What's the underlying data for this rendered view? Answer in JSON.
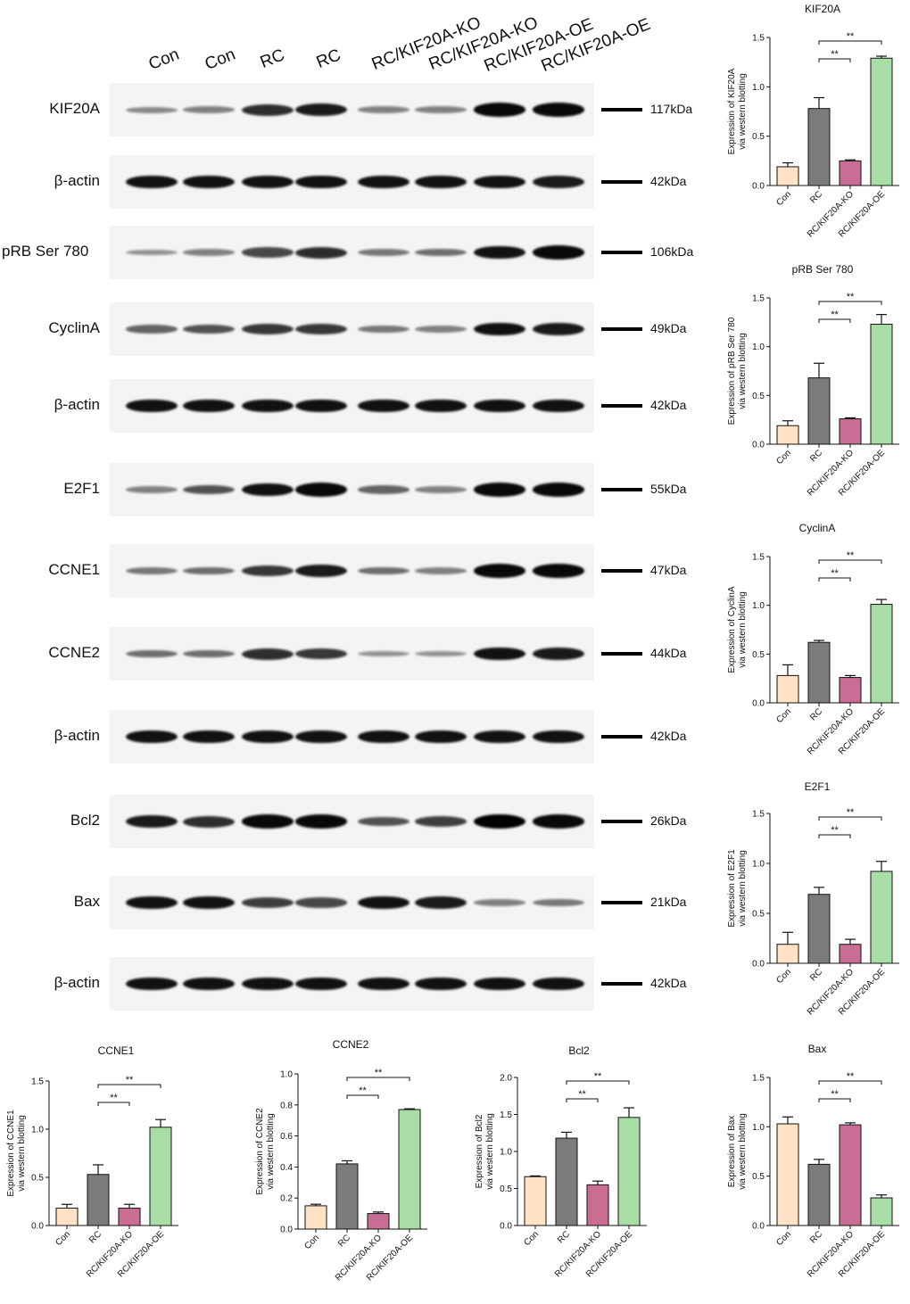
{
  "lanes": [
    "Con",
    "Con",
    "RC",
    "RC",
    "RC/KIF20A-KO",
    "RC/KIF20A-KO",
    "RC/KIF20A-OE",
    "RC/KIF20A-OE"
  ],
  "blots": [
    {
      "label": "KIF20A",
      "kda": "117kDa",
      "intensity": [
        0.25,
        0.3,
        0.75,
        0.85,
        0.3,
        0.3,
        0.95,
        0.95
      ]
    },
    {
      "label": "β-actin",
      "kda": "42kDa",
      "intensity": [
        0.9,
        0.9,
        0.9,
        0.9,
        0.9,
        0.9,
        0.9,
        0.85
      ]
    },
    {
      "label": "pRB Ser 780",
      "kda": "106kDa",
      "intensity": [
        0.2,
        0.3,
        0.6,
        0.75,
        0.35,
        0.4,
        0.9,
        0.95
      ]
    },
    {
      "label": "CyclinA",
      "kda": "49kDa",
      "intensity": [
        0.45,
        0.55,
        0.7,
        0.7,
        0.35,
        0.3,
        0.9,
        0.85
      ]
    },
    {
      "label": "β-actin",
      "kda": "42kDa",
      "intensity": [
        0.9,
        0.9,
        0.9,
        0.9,
        0.9,
        0.9,
        0.9,
        0.9
      ]
    },
    {
      "label": "E2F1",
      "kda": "55kDa",
      "intensity": [
        0.3,
        0.55,
        0.9,
        0.95,
        0.45,
        0.3,
        0.95,
        0.95
      ]
    },
    {
      "label": "CCNE1",
      "kda": "47kDa",
      "intensity": [
        0.35,
        0.4,
        0.7,
        0.85,
        0.4,
        0.3,
        0.95,
        0.95
      ]
    },
    {
      "label": "CCNE2",
      "kda": "44kDa",
      "intensity": [
        0.4,
        0.4,
        0.75,
        0.7,
        0.2,
        0.2,
        0.9,
        0.85
      ]
    },
    {
      "label": "β-actin",
      "kda": "42kDa",
      "intensity": [
        0.9,
        0.9,
        0.9,
        0.9,
        0.9,
        0.9,
        0.9,
        0.9
      ]
    },
    {
      "label": "Bcl2",
      "kda": "26kDa",
      "intensity": [
        0.85,
        0.75,
        0.95,
        0.95,
        0.55,
        0.65,
        1.0,
        0.95
      ]
    },
    {
      "label": "Bax",
      "kda": "21kDa",
      "intensity": [
        0.9,
        0.9,
        0.65,
        0.6,
        0.9,
        0.85,
        0.3,
        0.35
      ]
    },
    {
      "label": "β-actin",
      "kda": "42kDa",
      "intensity": [
        0.9,
        0.9,
        0.9,
        0.9,
        0.9,
        0.9,
        0.9,
        0.9
      ]
    }
  ],
  "bar_colors": [
    "#ffe3c4",
    "#7b7b7b",
    "#c96d94",
    "#a8dea5"
  ],
  "sig_label": "**",
  "chart_data": [
    {
      "type": "bar",
      "title": "KIF20A",
      "ylabel": "Expression of KIF20A",
      "ylabel2": "via western blotting",
      "categories": [
        "Con",
        "RC",
        "RC/KIF20A-KO",
        "RC/KIF20A-OE"
      ],
      "values": [
        0.19,
        0.78,
        0.25,
        1.29
      ],
      "errors": [
        0.04,
        0.11,
        0.01,
        0.02
      ],
      "ylim": [
        0,
        1.5
      ],
      "yticks": [
        "0.0",
        "0.5",
        "1.0",
        "1.5"
      ],
      "significance": [
        {
          "from": 1,
          "to": 2,
          "label": "**"
        },
        {
          "from": 1,
          "to": 3,
          "label": "**"
        }
      ]
    },
    {
      "type": "bar",
      "title": "pRB Ser 780",
      "ylabel": "Expression of pRB Ser 780",
      "ylabel2": "via western blotting",
      "categories": [
        "Con",
        "RC",
        "RC/KIF20A-KO",
        "RC/KIF20A-OE"
      ],
      "values": [
        0.19,
        0.68,
        0.26,
        1.23
      ],
      "errors": [
        0.05,
        0.15,
        0.01,
        0.1
      ],
      "ylim": [
        0,
        1.5
      ],
      "yticks": [
        "0.0",
        "0.5",
        "1.0",
        "1.5"
      ],
      "significance": [
        {
          "from": 1,
          "to": 2,
          "label": "**"
        },
        {
          "from": 1,
          "to": 3,
          "label": "**"
        }
      ]
    },
    {
      "type": "bar",
      "title": "CyclinA",
      "ylabel": "Expression of CyclinA",
      "ylabel2": "via western blotting",
      "categories": [
        "Con",
        "RC",
        "RC/KIF20A-KO",
        "RC/KIF20A-OE"
      ],
      "values": [
        0.28,
        0.62,
        0.26,
        1.01
      ],
      "errors": [
        0.11,
        0.02,
        0.02,
        0.05
      ],
      "ylim": [
        0,
        1.5
      ],
      "yticks": [
        "0.0",
        "0.5",
        "1.0",
        "1.5"
      ],
      "significance": [
        {
          "from": 1,
          "to": 2,
          "label": "**"
        },
        {
          "from": 1,
          "to": 3,
          "label": "**"
        }
      ]
    },
    {
      "type": "bar",
      "title": "E2F1",
      "ylabel": "Expression of E2F1",
      "ylabel2": "via western blotting",
      "categories": [
        "Con",
        "RC",
        "RC/KIF20A-KO",
        "RC/KIF20A-OE"
      ],
      "values": [
        0.19,
        0.69,
        0.19,
        0.92
      ],
      "errors": [
        0.12,
        0.07,
        0.05,
        0.1
      ],
      "ylim": [
        0,
        1.5
      ],
      "yticks": [
        "0.0",
        "0.5",
        "1.0",
        "1.5"
      ],
      "significance": [
        {
          "from": 1,
          "to": 2,
          "label": "**"
        },
        {
          "from": 1,
          "to": 3,
          "label": "**"
        }
      ]
    },
    {
      "type": "bar",
      "title": "CCNE1",
      "ylabel": "Expression of CCNE1",
      "ylabel2": "via western blotting",
      "categories": [
        "Con",
        "RC",
        "RC/KIF20A-KO",
        "RC/KIF20A-OE"
      ],
      "values": [
        0.18,
        0.53,
        0.18,
        1.02
      ],
      "errors": [
        0.04,
        0.1,
        0.04,
        0.08
      ],
      "ylim": [
        0,
        1.5
      ],
      "yticks": [
        "0.0",
        "0.5",
        "1.0",
        "1.5"
      ],
      "significance": [
        {
          "from": 1,
          "to": 2,
          "label": "**"
        },
        {
          "from": 1,
          "to": 3,
          "label": "**"
        }
      ]
    },
    {
      "type": "bar",
      "title": "CCNE2",
      "ylabel": "Expression of CCNE2",
      "ylabel2": "via western blotting",
      "categories": [
        "Con",
        "RC",
        "RC/KIF20A-KO",
        "RC/KIF20A-OE"
      ],
      "values": [
        0.15,
        0.42,
        0.1,
        0.77
      ],
      "errors": [
        0.01,
        0.02,
        0.01,
        0.005
      ],
      "ylim": [
        0,
        1.0
      ],
      "yticks": [
        "0.0",
        "0.2",
        "0.4",
        "0.6",
        "0.8",
        "1.0"
      ],
      "significance": [
        {
          "from": 1,
          "to": 2,
          "label": "**"
        },
        {
          "from": 1,
          "to": 3,
          "label": "**"
        }
      ]
    },
    {
      "type": "bar",
      "title": "Bcl2",
      "ylabel": "Expression of Bcl2",
      "ylabel2": "via western blotting",
      "categories": [
        "Con",
        "RC",
        "RC/KIF20A-KO",
        "RC/KIF20A-OE"
      ],
      "values": [
        0.66,
        1.18,
        0.55,
        1.46
      ],
      "errors": [
        0.01,
        0.08,
        0.05,
        0.13
      ],
      "ylim": [
        0,
        2.0
      ],
      "yticks": [
        "0.0",
        "0.5",
        "1.0",
        "1.5",
        "2.0"
      ],
      "significance": [
        {
          "from": 1,
          "to": 2,
          "label": "**"
        },
        {
          "from": 1,
          "to": 3,
          "label": "**"
        }
      ]
    },
    {
      "type": "bar",
      "title": "Bax",
      "ylabel": "Expression of Bax",
      "ylabel2": "via western blotting",
      "categories": [
        "Con",
        "RC",
        "RC/KIF20A-KO",
        "RC/KIF20A-OE"
      ],
      "values": [
        1.03,
        0.62,
        1.02,
        0.28
      ],
      "errors": [
        0.07,
        0.05,
        0.02,
        0.03
      ],
      "ylim": [
        0,
        1.5
      ],
      "yticks": [
        "0.0",
        "0.5",
        "1.0",
        "1.5"
      ],
      "significance": [
        {
          "from": 1,
          "to": 2,
          "label": "**"
        },
        {
          "from": 1,
          "to": 3,
          "label": "**"
        }
      ]
    }
  ]
}
